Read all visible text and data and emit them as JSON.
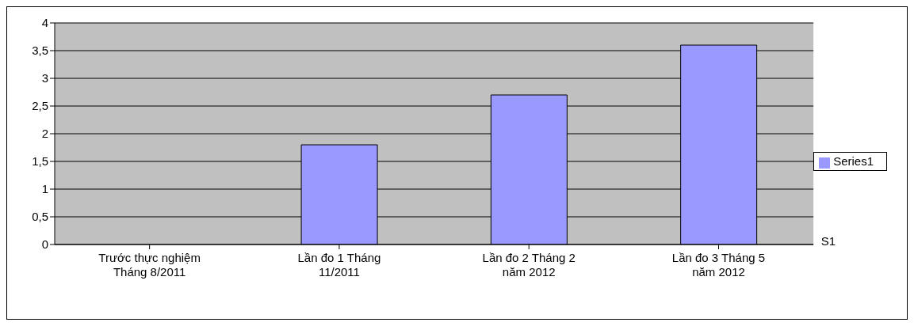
{
  "chart_data": {
    "type": "bar",
    "categories": [
      "Trước thực nghiệm Tháng 8/2011",
      "Lần đo 1 Tháng 11/2011",
      "Lần đo 2 Tháng 2 năm 2012",
      "Lần đo 3 Tháng 5 năm 2012"
    ],
    "series": [
      {
        "name": "Series1",
        "color": "#9999ff",
        "values": [
          0,
          1.8,
          2.7,
          3.6
        ]
      }
    ],
    "ylim": [
      0,
      4
    ],
    "yticks": [
      0,
      {
        "value": 0.5,
        "label": "0,5"
      },
      1,
      {
        "value": 1.5,
        "label": "1,5"
      },
      2,
      {
        "value": 2.5,
        "label": "2,5"
      },
      3,
      {
        "value": 3.5,
        "label": "3,5"
      },
      4
    ],
    "grid": "y",
    "legend": "right",
    "annotations": [
      "S1"
    ]
  }
}
